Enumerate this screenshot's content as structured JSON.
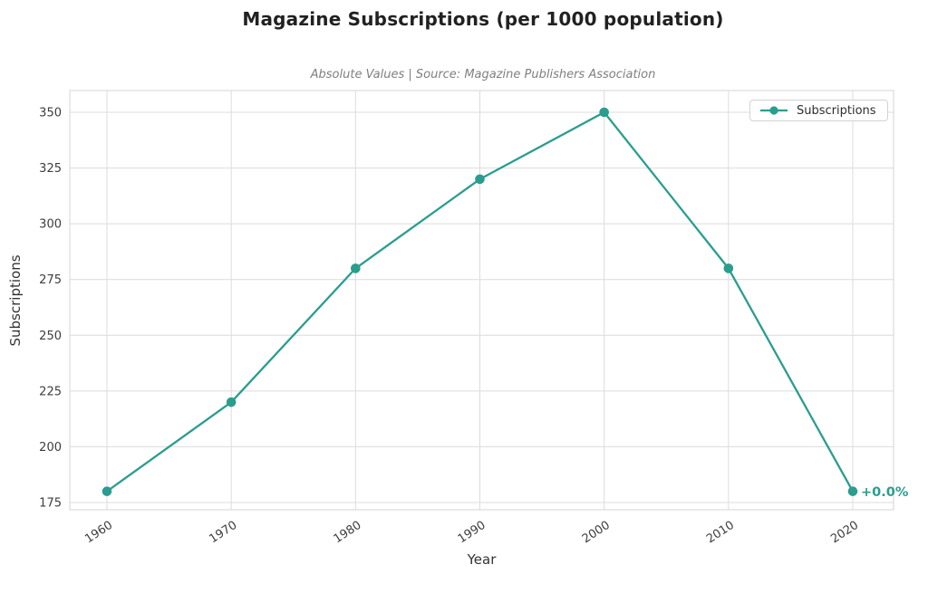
{
  "title": "Magazine Subscriptions (per 1000 population)",
  "subtitle": "Absolute Values | Source: Magazine Publishers Association",
  "chart_data": {
    "type": "line",
    "x": [
      1960,
      1970,
      1980,
      1990,
      2000,
      2010,
      2020
    ],
    "xticks": [
      "1960",
      "1970",
      "1980",
      "1990",
      "2000",
      "2010",
      "2020"
    ],
    "yticks": [
      175,
      200,
      225,
      250,
      275,
      300,
      325,
      350
    ],
    "series": [
      {
        "name": "Subscriptions",
        "values": [
          180,
          220,
          280,
          320,
          350,
          280,
          180
        ],
        "color": "#2a9d8f",
        "marker": "circle"
      }
    ],
    "title": "Magazine Subscriptions (per 1000 population)",
    "subtitle": "Absolute Values | Source: Magazine Publishers Association",
    "xlabel": "Year",
    "ylabel": "Subscriptions",
    "xlim": [
      1957,
      2023.5
    ],
    "ylim": [
      171,
      360
    ],
    "grid": true,
    "legend": {
      "position": "upper-right",
      "entries": [
        "Subscriptions"
      ]
    },
    "annotation": {
      "text": "+0.0%",
      "x": 2020,
      "y": 180
    }
  },
  "colors": {
    "accent": "#2a9d8f",
    "grid": "#dcdcdc",
    "spine": "#d4d4d4",
    "tick_text": "#3d3d3d",
    "axis_label_text": "#333333",
    "title_text": "#212121",
    "subtitle_text": "#7f7f7f",
    "background": "#ffffff"
  }
}
